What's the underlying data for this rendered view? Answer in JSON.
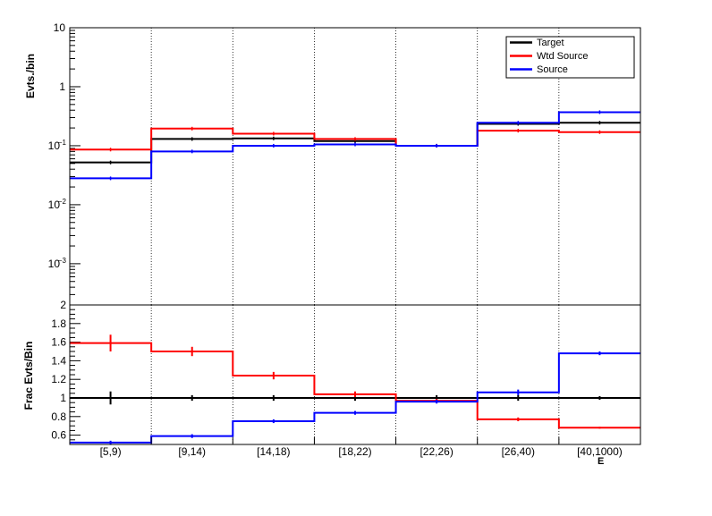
{
  "chart_data": [
    {
      "type": "line",
      "panel": "top",
      "ylabel": "Evts./bin",
      "yscale": "log",
      "ylim": [
        0.0002,
        10
      ],
      "yticks": [
        {
          "v": 10,
          "base": "10",
          "exp": ""
        },
        {
          "v": 1,
          "base": "1",
          "exp": ""
        },
        {
          "v": 0.1,
          "base": "10",
          "exp": "−1"
        },
        {
          "v": 0.01,
          "base": "10",
          "exp": "−2"
        },
        {
          "v": 0.001,
          "base": "10",
          "exp": "−3"
        }
      ],
      "categories": [
        "[5,9)",
        "[9,14)",
        "[14,18)",
        "[18,22)",
        "[22,26)",
        "[26,40)",
        "[40,1000)"
      ],
      "grid_x": true,
      "legend_position": "top-right",
      "series": [
        {
          "name": "Target",
          "color": "#000000",
          "values": [
            0.052,
            0.13,
            0.133,
            0.12,
            0.1,
            0.235,
            0.245
          ]
        },
        {
          "name": "Wtd Source",
          "color": "#ff0000",
          "values": [
            0.086,
            0.195,
            0.16,
            0.13,
            0.1,
            0.18,
            0.17
          ]
        },
        {
          "name": "Source",
          "color": "#0000ff",
          "values": [
            0.028,
            0.08,
            0.1,
            0.105,
            0.1,
            0.245,
            0.37
          ]
        }
      ]
    },
    {
      "type": "line",
      "panel": "bottom",
      "ylabel": "Frac Evts/Bin",
      "ylim": [
        0.5,
        2.0
      ],
      "yticks": [
        "0.6",
        "0.8",
        "1",
        "1.2",
        "1.4",
        "1.6",
        "1.8",
        "2"
      ],
      "xlabel": "E",
      "categories": [
        "[5,9)",
        "[9,14)",
        "[14,18)",
        "[18,22)",
        "[22,26)",
        "[26,40)",
        "[40,1000)"
      ],
      "grid_x": true,
      "series": [
        {
          "name": "Target",
          "color": "#000000",
          "values": [
            1,
            1,
            1,
            1,
            1,
            1,
            1
          ],
          "errors": [
            0.07,
            0.03,
            0.03,
            0.03,
            0.03,
            0.03,
            0.02
          ]
        },
        {
          "name": "Wtd Source",
          "color": "#ff0000",
          "values": [
            1.59,
            1.5,
            1.24,
            1.04,
            0.97,
            0.77,
            0.68
          ],
          "errors": [
            0.09,
            0.05,
            0.04,
            0.03,
            0.02,
            0.02,
            0.01
          ]
        },
        {
          "name": "Source",
          "color": "#0000ff",
          "values": [
            0.52,
            0.59,
            0.75,
            0.84,
            0.96,
            1.06,
            1.48
          ],
          "errors": [
            0.02,
            0.02,
            0.02,
            0.02,
            0.02,
            0.03,
            0.02
          ]
        }
      ]
    }
  ]
}
